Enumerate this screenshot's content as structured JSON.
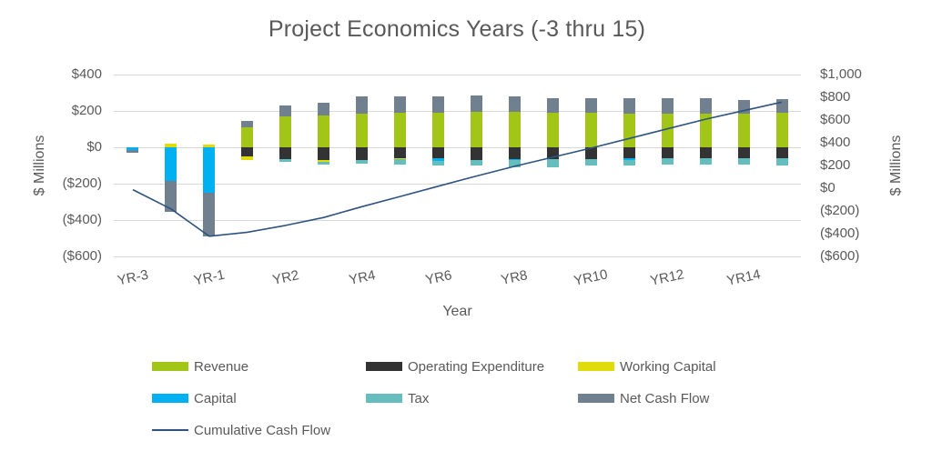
{
  "title": "Project Economics Years (-3 thru 15)",
  "y_axis_left": {
    "label": "$ Millions",
    "ticks": [
      {
        "value": 400,
        "text": "$400"
      },
      {
        "value": 200,
        "text": "$200"
      },
      {
        "value": 0,
        "text": "$0"
      },
      {
        "value": -200,
        "text": "($200)"
      },
      {
        "value": -400,
        "text": "($400)"
      },
      {
        "value": -600,
        "text": "($600)"
      }
    ]
  },
  "y_axis_right": {
    "label": "$ Millions",
    "ticks": [
      {
        "value": 1000,
        "text": "$1,000"
      },
      {
        "value": 800,
        "text": "$800"
      },
      {
        "value": 600,
        "text": "$600"
      },
      {
        "value": 400,
        "text": "$400"
      },
      {
        "value": 200,
        "text": "$200"
      },
      {
        "value": 0,
        "text": "$0"
      },
      {
        "value": -200,
        "text": "($200)"
      },
      {
        "value": -400,
        "text": "($400)"
      },
      {
        "value": -600,
        "text": "($600)"
      }
    ]
  },
  "x_axis": {
    "label": "Year",
    "shown_tick_indices": [
      0,
      2,
      4,
      6,
      8,
      10,
      12,
      14,
      16
    ]
  },
  "colors": {
    "revenue": "#a2c617",
    "operating_expenditure": "#333333",
    "working_capital": "#e0dc0c",
    "capital": "#00b0f0",
    "tax": "#66bdbd",
    "net_cash_flow": "#71808f",
    "cumulative_cash_flow": "#2e5380",
    "text": "#595959",
    "gridline": "#d9d9d9"
  },
  "legend": [
    {
      "key": "revenue",
      "label": "Revenue",
      "type": "swatch"
    },
    {
      "key": "operating_expenditure",
      "label": "Operating Expenditure",
      "type": "swatch"
    },
    {
      "key": "working_capital",
      "label": "Working Capital",
      "type": "swatch"
    },
    {
      "key": "capital",
      "label": "Capital",
      "type": "swatch"
    },
    {
      "key": "tax",
      "label": "Tax",
      "type": "swatch"
    },
    {
      "key": "net_cash_flow",
      "label": "Net Cash Flow",
      "type": "swatch"
    },
    {
      "key": "cumulative_cash_flow",
      "label": "Cumulative Cash Flow",
      "type": "line"
    }
  ],
  "chart_data": {
    "type": "combo: stacked bar + line",
    "title": "Project Economics Years (-3 thru 15)",
    "xlabel": "Year",
    "ylabel_left": "$ Millions",
    "ylabel_right": "$ Millions",
    "ylim_left": [
      -600,
      400
    ],
    "ylim_right": [
      -600,
      1000
    ],
    "grid": true,
    "legend_position": "bottom",
    "categories": [
      "YR-3",
      "YR-2",
      "YR-1",
      "YR1",
      "YR2",
      "YR3",
      "YR4",
      "YR5",
      "YR6",
      "YR7",
      "YR8",
      "YR9",
      "YR10",
      "YR11",
      "YR12",
      "YR13",
      "YR14",
      "YR15"
    ],
    "series": [
      {
        "name": "Revenue",
        "key": "revenue",
        "axis": "left",
        "values": [
          0,
          0,
          0,
          110,
          168,
          175,
          182,
          188,
          190,
          192,
          192,
          190,
          188,
          185,
          183,
          183,
          185,
          188
        ]
      },
      {
        "name": "Operating Expenditure",
        "key": "operating_expenditure",
        "axis": "left",
        "values": [
          0,
          0,
          0,
          -50,
          -68,
          -72,
          -70,
          -60,
          -62,
          -70,
          -65,
          -68,
          -65,
          -60,
          -62,
          -63,
          -63,
          -62
        ]
      },
      {
        "name": "Working Capital",
        "key": "working_capital",
        "axis": "left",
        "values": [
          0,
          20,
          12,
          -22,
          0,
          -8,
          0,
          -8,
          0,
          0,
          0,
          0,
          0,
          0,
          0,
          0,
          0,
          0
        ]
      },
      {
        "name": "Capital",
        "key": "capital",
        "axis": "left",
        "values": [
          -15,
          -185,
          -250,
          0,
          0,
          0,
          0,
          0,
          -15,
          0,
          -8,
          0,
          0,
          -12,
          0,
          0,
          0,
          0
        ]
      },
      {
        "name": "Tax",
        "key": "tax",
        "axis": "left",
        "values": [
          0,
          0,
          0,
          0,
          -12,
          -18,
          -22,
          -28,
          -25,
          -30,
          -38,
          -45,
          -38,
          -30,
          -35,
          -35,
          -35,
          -38
        ]
      },
      {
        "name": "Net Cash Flow",
        "key": "net_cash_flow",
        "axis": "left",
        "values": [
          -15,
          -170,
          -240,
          35,
          60,
          70,
          95,
          90,
          90,
          90,
          85,
          80,
          80,
          85,
          85,
          85,
          75,
          75
        ]
      }
    ],
    "line_series": {
      "name": "Cumulative Cash Flow",
      "key": "cumulative_cash_flow",
      "axis": "right",
      "values": [
        -15,
        -185,
        -425,
        -390,
        -330,
        -260,
        -165,
        -75,
        15,
        105,
        190,
        270,
        350,
        435,
        520,
        605,
        680,
        755
      ]
    }
  }
}
